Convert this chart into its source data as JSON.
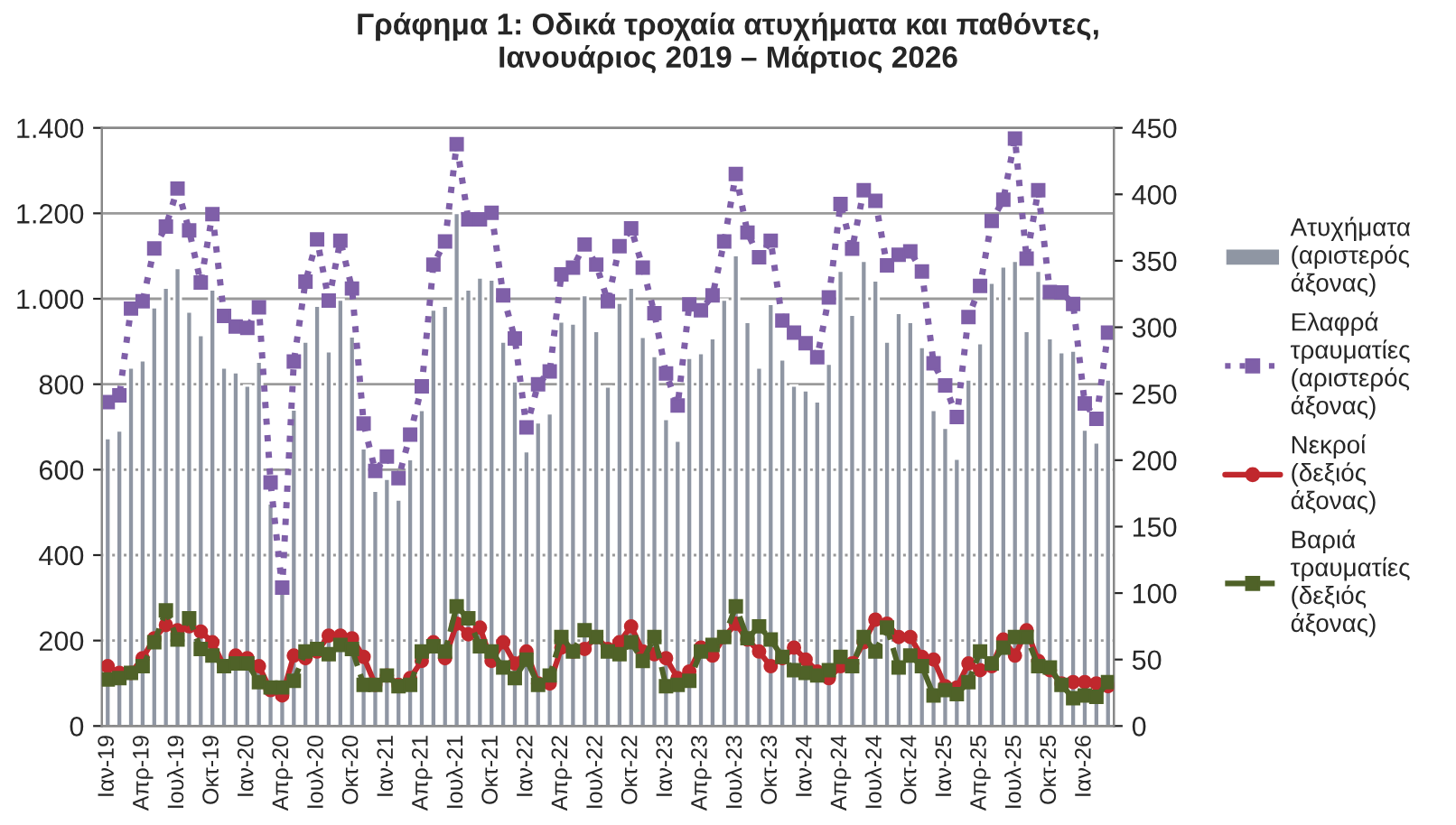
{
  "chart_data": {
    "type": "bar",
    "title": "Γράφημα 1: Οδικά τροχαία ατυχήματα και παθόντες,\nΙανουάριος 2019 – Μάρτιος 2026",
    "categories": [
      "Ιαν-19",
      null,
      null,
      "Απρ-19",
      null,
      null,
      "Ιουλ-19",
      null,
      null,
      "Οκτ-19",
      null,
      null,
      "Ιαν-20",
      null,
      null,
      "Απρ-20",
      null,
      null,
      "Ιουλ-20",
      null,
      null,
      "Οκτ-20",
      null,
      null,
      "Ιαν-21",
      null,
      null,
      "Απρ-21",
      null,
      null,
      "Ιουλ-21",
      null,
      null,
      "Οκτ-21",
      null,
      null,
      "Ιαν-22",
      null,
      null,
      "Απρ-22",
      null,
      null,
      "Ιουλ-22",
      null,
      null,
      "Οκτ-22",
      null,
      null,
      "Ιαν-23",
      null,
      null,
      "Απρ-23",
      null,
      null,
      "Ιουλ-23",
      null,
      null,
      "Οκτ-23",
      null,
      null,
      "Ιαν-24",
      null,
      null,
      "Απρ-24",
      null,
      null,
      "Ιουλ-24",
      null,
      null,
      "Οκτ-24",
      null,
      null,
      "Ιαν-25",
      null,
      null,
      "Απρ-25",
      null,
      null,
      "Ιουλ-25",
      null,
      null,
      "Οκτ-25",
      null,
      null,
      "Ιαν-26",
      null,
      null
    ],
    "series": [
      {
        "name": "Ατυχήματα\n(αριστερός\nάξονας)",
        "axis": "y",
        "color": "#8f96a3",
        "values": [
          674,
          692,
          839,
          856,
          980,
          1026,
          1072,
          970,
          915,
          1022,
          839,
          828,
          797,
          853,
          521,
          321,
          741,
          900,
          984,
          877,
          998,
          912,
          650,
          551,
          579,
          530,
          625,
          740,
          975,
          984,
          1201,
          1022,
          1050,
          1045,
          900,
          807,
          643,
          711,
          732,
          947,
          942,
          1009,
          925,
          795,
          991,
          1026,
          911,
          866,
          719,
          668,
          862,
          873,
          908,
          998,
          1102,
          946,
          839,
          988,
          858,
          797,
          786,
          760,
          848,
          1066,
          963,
          1089,
          1043,
          900,
          967,
          946,
          887,
          740,
          698,
          626,
          811,
          896,
          1038,
          1076,
          1089,
          925,
          1066,
          908,
          875,
          879,
          694,
          664,
          811
        ]
      },
      {
        "name": "Ελαφρά\nτραυματίες\n(αριστερός\nάξονας)",
        "type": "line",
        "axis": "y",
        "color": "#7f5fa8",
        "marker": "square",
        "line_style": "dotted",
        "values": [
          758,
          774,
          977,
          994,
          1118,
          1169,
          1258,
          1160,
          1038,
          1198,
          960,
          935,
          932,
          980,
          570,
          324,
          853,
          1040,
          1139,
          996,
          1136,
          1024,
          708,
          597,
          631,
          580,
          682,
          795,
          1080,
          1134,
          1362,
          1186,
          1186,
          1201,
          1008,
          907,
          699,
          800,
          830,
          1057,
          1073,
          1127,
          1080,
          994,
          1123,
          1165,
          1073,
          966,
          825,
          750,
          987,
          973,
          1008,
          1134,
          1292,
          1155,
          1097,
          1136,
          949,
          921,
          896,
          863,
          1003,
          1222,
          1117,
          1254,
          1229,
          1078,
          1103,
          1111,
          1064,
          849,
          797,
          723,
          957,
          1030,
          1182,
          1232,
          1375,
          1094,
          1254,
          1016,
          1015,
          988,
          755,
          719,
          921
        ]
      },
      {
        "name": "Νεκροί\n(δεξιός\nάξονας)",
        "type": "line",
        "axis": "y2",
        "color": "#c0282d",
        "marker": "circle",
        "line_style": "solid",
        "values": [
          45,
          40,
          40,
          51,
          66,
          76,
          72,
          75,
          71,
          63,
          45,
          53,
          51,
          45,
          27,
          23,
          53,
          51,
          56,
          68,
          68,
          66,
          52,
          31,
          38,
          31,
          36,
          49,
          63,
          51,
          77,
          69,
          74,
          49,
          63,
          47,
          56,
          32,
          32,
          59,
          56,
          58,
          67,
          58,
          63,
          75,
          56,
          54,
          51,
          36,
          41,
          59,
          53,
          67,
          77,
          65,
          56,
          45,
          51,
          59,
          50,
          41,
          36,
          45,
          47,
          63,
          80,
          77,
          67,
          67,
          52,
          50,
          30,
          29,
          47,
          42,
          45,
          65,
          53,
          72,
          49,
          42,
          32,
          33,
          33,
          32,
          30
        ]
      },
      {
        "name": "Βαριά\nτραυματίες\n(δεξιός\nάξονας)",
        "type": "line",
        "axis": "y2",
        "color": "#4f6228",
        "marker": "square",
        "line_style": "dashed",
        "values": [
          35,
          36,
          40,
          45,
          63,
          87,
          65,
          81,
          58,
          53,
          45,
          47,
          47,
          33,
          29,
          29,
          34,
          56,
          58,
          54,
          61,
          58,
          31,
          31,
          38,
          30,
          31,
          56,
          60,
          56,
          90,
          81,
          60,
          56,
          44,
          36,
          50,
          31,
          38,
          67,
          56,
          72,
          67,
          56,
          54,
          63,
          49,
          67,
          30,
          31,
          34,
          56,
          61,
          67,
          90,
          66,
          75,
          65,
          52,
          42,
          40,
          38,
          42,
          52,
          45,
          67,
          56,
          74,
          44,
          53,
          45,
          23,
          27,
          24,
          33,
          56,
          47,
          59,
          67,
          67,
          45,
          44,
          31,
          21,
          23,
          22,
          33
        ]
      }
    ],
    "ylim": [
      0,
      1400
    ],
    "yticks": [
      0,
      200,
      400,
      600,
      800,
      {
        "value": 1000,
        "label": "1.000"
      },
      {
        "value": 1200,
        "label": "1.200"
      },
      {
        "value": 1400,
        "label": "1.400"
      }
    ],
    "y2lim": [
      0,
      450
    ],
    "y2ticks": [
      0,
      50,
      100,
      150,
      200,
      250,
      300,
      350,
      400,
      450
    ],
    "grid": "y",
    "legend": "right"
  }
}
